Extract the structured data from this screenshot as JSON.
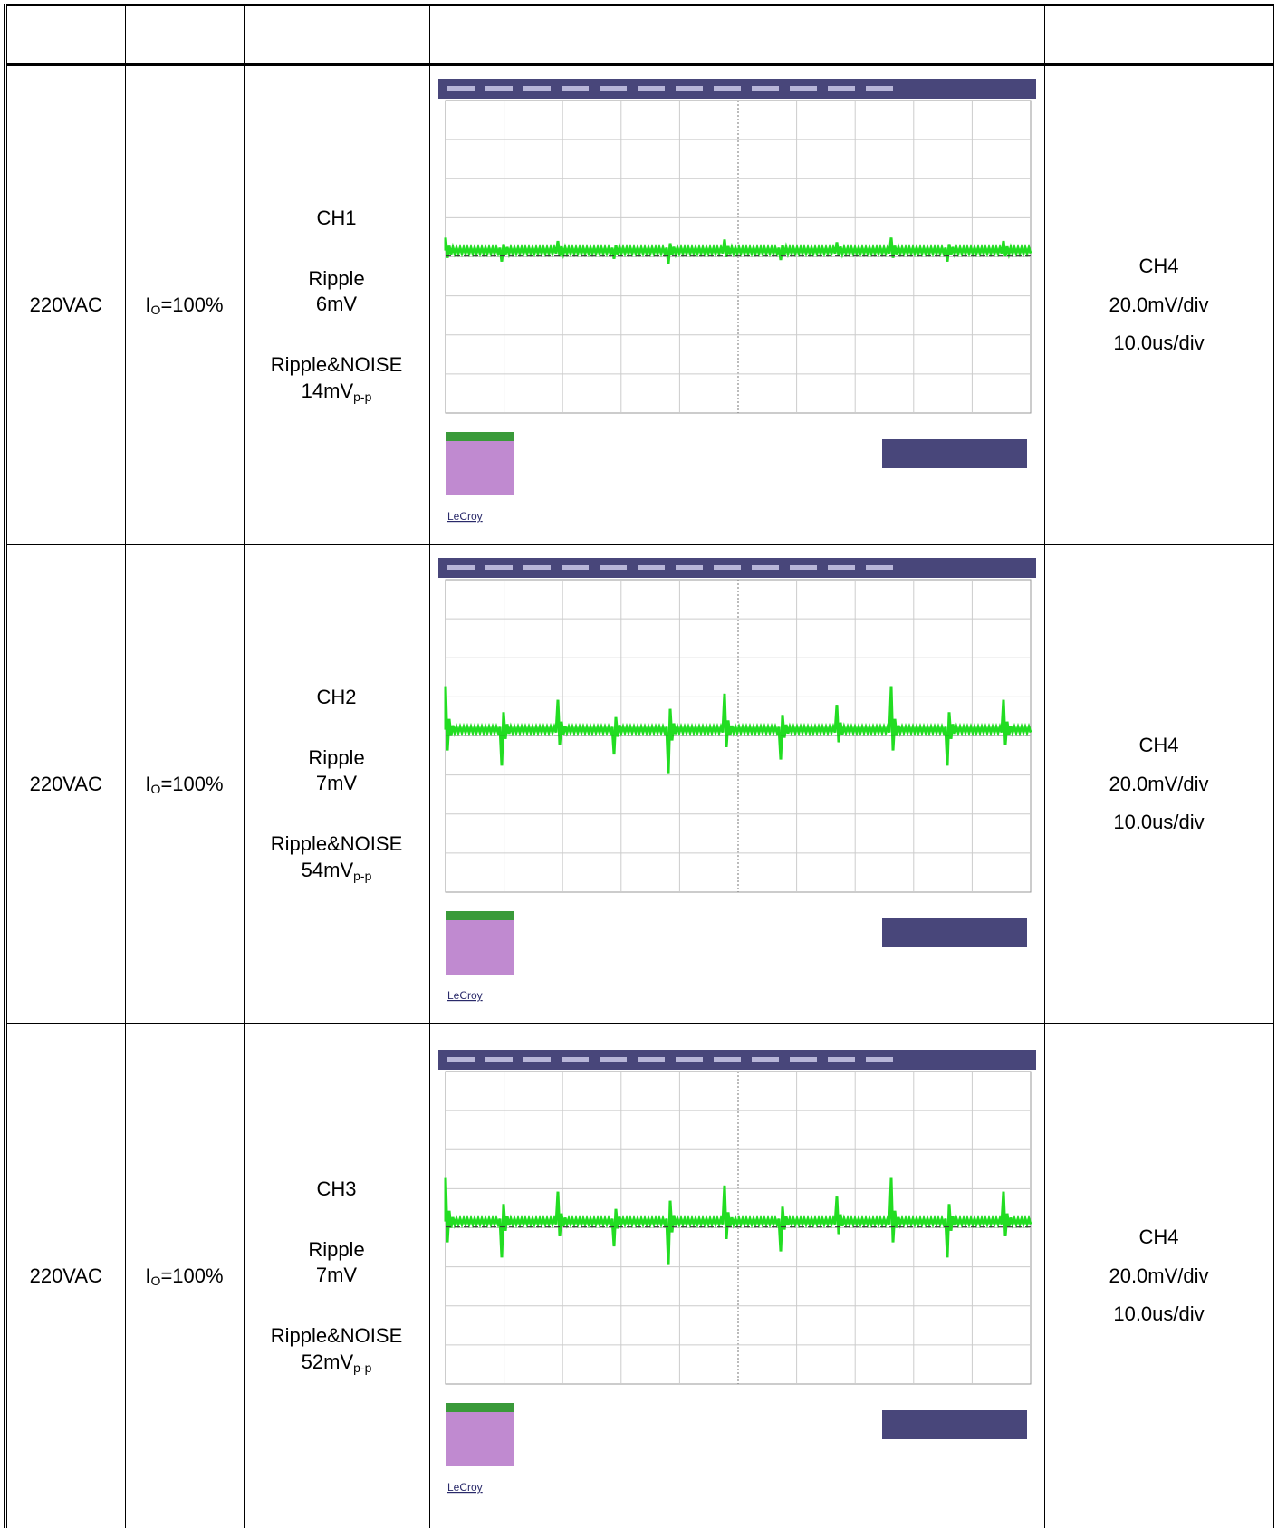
{
  "rows": [
    {
      "input": "220VAC",
      "load": {
        "symbol": "I",
        "sub": "O",
        "rest": "=100%"
      },
      "channel": "CH1",
      "ripple_label": "Ripple",
      "ripple": "6mV",
      "noise_label": "Ripple&NOISE",
      "noise": "14mV",
      "noise_sub": "p-p",
      "scope_brand": "LeCroy",
      "probe": "CH4",
      "vdiv": "20.0mV/div",
      "tdiv": "10.0us/div"
    },
    {
      "input": "220VAC",
      "load": {
        "symbol": "I",
        "sub": "O",
        "rest": "=100%"
      },
      "channel": "CH2",
      "ripple_label": "Ripple",
      "ripple": "7mV",
      "noise_label": "Ripple&NOISE",
      "noise": "54mV",
      "noise_sub": "p-p",
      "scope_brand": "LeCroy",
      "probe": "CH4",
      "vdiv": "20.0mV/div",
      "tdiv": "10.0us/div"
    },
    {
      "input": "220VAC",
      "load": {
        "symbol": "I",
        "sub": "O",
        "rest": "=100%"
      },
      "channel": "CH3",
      "ripple_label": "Ripple",
      "ripple": "7mV",
      "noise_label": "Ripple&NOISE",
      "noise": "52mV",
      "noise_sub": "p-p",
      "scope_brand": "LeCroy",
      "probe": "CH4",
      "vdiv": "20.0mV/div",
      "tdiv": "10.0us/div"
    }
  ]
}
